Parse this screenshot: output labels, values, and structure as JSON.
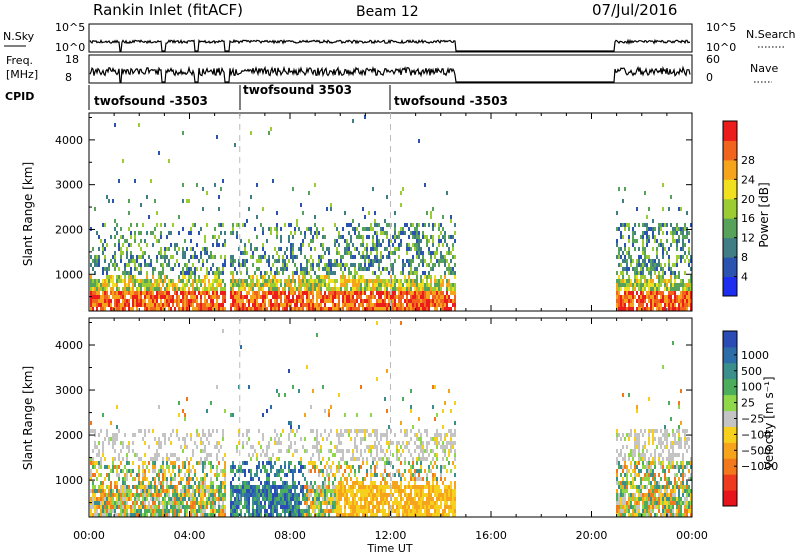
{
  "header": {
    "station": "Rankin Inlet (fitACF)",
    "beam": "Beam 12",
    "date": "07/Jul/2016"
  },
  "top_panels": {
    "nsky_label": "N.Sky",
    "nsky_ticks": [
      "10^5",
      "10^0"
    ],
    "nsearch_label": "N.Search",
    "nsearch_ticks": [
      "10^5",
      "10^0"
    ],
    "freq_label": "Freq.",
    "freq_unit": "[MHz]",
    "freq_ticks": [
      "18",
      "8"
    ],
    "nave_label": "Nave",
    "nave_ticks": [
      "60",
      "0"
    ],
    "cpid_label": "CPID",
    "cpid_segments": [
      "twofsound -3503",
      "twofsound 3503",
      "twofsound -3503"
    ]
  },
  "chart_data": [
    {
      "type": "heatmap",
      "title": "",
      "xlabel": "Time UT",
      "ylabel": "Slant Range [km]",
      "xlim": [
        0,
        24
      ],
      "ylim": [
        180,
        4600
      ],
      "x_ticks": [
        "00:00",
        "04:00",
        "08:00",
        "12:00",
        "16:00",
        "20:00",
        "00:00"
      ],
      "y_ticks": [
        1000,
        2000,
        3000,
        4000
      ],
      "colorbar": {
        "label": "Power [dB]",
        "ticks": [
          4,
          8,
          12,
          16,
          20,
          24,
          28
        ],
        "range": [
          0,
          30
        ],
        "colors": [
          "#1e2ef0",
          "#2a54b0",
          "#3f7e84",
          "#56a25a",
          "#9ccc34",
          "#f0e020",
          "#f6a41c",
          "#f0641e",
          "#ec1c1c"
        ]
      },
      "data_coverage_hours": [
        [
          0,
          5.4
        ],
        [
          5.6,
          14.6
        ],
        [
          20.9,
          24
        ]
      ],
      "strong_echo_band_km": [
        300,
        900
      ]
    },
    {
      "type": "heatmap",
      "title": "",
      "xlabel": "Time UT",
      "ylabel": "Slant Range [km]",
      "xlim": [
        0,
        24
      ],
      "ylim": [
        180,
        4600
      ],
      "x_ticks": [
        "00:00",
        "04:00",
        "08:00",
        "12:00",
        "16:00",
        "20:00",
        "00:00"
      ],
      "y_ticks": [
        1000,
        2000,
        3000,
        4000
      ],
      "colorbar": {
        "label": "Velocity [m s⁻¹]",
        "ticks": [
          "1000",
          "500",
          "100",
          "25",
          "−25",
          "−100",
          "−500",
          "−1000"
        ],
        "colors": [
          "#2a4cb4",
          "#2e6ea8",
          "#3a8e8c",
          "#4cae5a",
          "#8ed84a",
          "#c4c4c4",
          "#f6d01c",
          "#f6a41c",
          "#f2781e",
          "#ee3a1e",
          "#e8141c"
        ]
      },
      "data_coverage_hours": [
        [
          0,
          5.4
        ],
        [
          5.6,
          14.6
        ],
        [
          20.9,
          24
        ]
      ]
    }
  ]
}
